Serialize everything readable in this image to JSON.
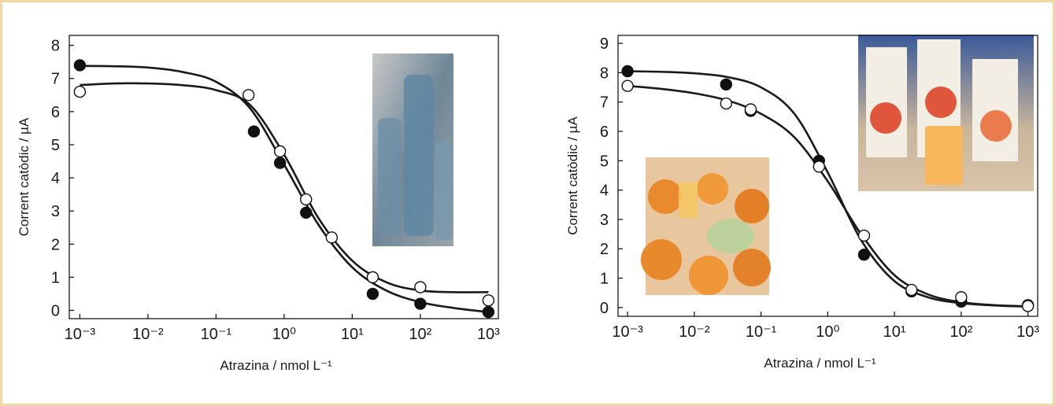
{
  "chart_data": [
    {
      "type": "scatter",
      "xscale": "log",
      "xlabel": "Atrazina / nmol L⁻¹",
      "ylabel": "Corrent catòdic / µA",
      "xlim": [
        0.0007,
        1400
      ],
      "ylim": [
        -0.25,
        8.3
      ],
      "xticks": [
        {
          "value": 0.001,
          "label": "10⁻³"
        },
        {
          "value": 0.01,
          "label": "10⁻²"
        },
        {
          "value": 0.1,
          "label": "10⁻¹"
        },
        {
          "value": 1,
          "label": "10⁰"
        },
        {
          "value": 10,
          "label": "10¹"
        },
        {
          "value": 100,
          "label": "10²"
        },
        {
          "value": 1000,
          "label": "10³"
        }
      ],
      "yticks": [
        0,
        1,
        2,
        3,
        4,
        5,
        6,
        7,
        8
      ],
      "series": [
        {
          "marker": "filled",
          "color": "#111111",
          "x": [
            0.001,
            0.36,
            0.87,
            2.1,
            20,
            100,
            1000
          ],
          "values": [
            7.4,
            5.4,
            4.45,
            2.95,
            0.5,
            0.2,
            -0.05
          ]
        },
        {
          "marker": "open",
          "color": "#111111",
          "x": [
            0.001,
            0.3,
            0.87,
            2.1,
            5,
            20,
            100,
            1000
          ],
          "values": [
            6.6,
            6.5,
            4.8,
            3.35,
            2.2,
            1.0,
            0.7,
            0.3
          ]
        }
      ],
      "curves": [
        {
          "color": "#1a1a1a",
          "x": [
            0.001,
            0.00316,
            0.01,
            0.0316,
            0.1,
            0.316,
            1,
            3.16,
            10,
            31.6,
            100,
            316,
            1000
          ],
          "values": [
            7.38,
            7.37,
            7.33,
            7.2,
            6.9,
            6.1,
            4.4,
            2.6,
            1.3,
            0.6,
            0.25,
            0.07,
            -0.05
          ]
        },
        {
          "color": "#1a1a1a",
          "x": [
            0.001,
            0.00316,
            0.01,
            0.0316,
            0.1,
            0.316,
            1,
            3.16,
            10,
            31.6,
            100,
            316,
            1000
          ],
          "values": [
            6.8,
            6.85,
            6.85,
            6.8,
            6.65,
            6.2,
            4.7,
            2.8,
            1.5,
            0.85,
            0.6,
            0.55,
            0.55
          ]
        }
      ]
    },
    {
      "type": "scatter",
      "xscale": "log",
      "xlabel": "Atrazina / nmol L⁻¹",
      "ylabel": "Corrent catòdic / µA",
      "xlim": [
        0.00072,
        1400
      ],
      "ylim": [
        -0.3,
        9.27
      ],
      "xticks": [
        {
          "value": 0.001,
          "label": "10⁻³"
        },
        {
          "value": 0.01,
          "label": "10⁻²"
        },
        {
          "value": 0.1,
          "label": "10⁻¹"
        },
        {
          "value": 1,
          "label": "10⁰"
        },
        {
          "value": 10,
          "label": "10¹"
        },
        {
          "value": 100,
          "label": "10²"
        },
        {
          "value": 1000,
          "label": "10³"
        }
      ],
      "yticks": [
        0,
        1,
        2,
        3,
        4,
        5,
        6,
        7,
        8,
        9
      ],
      "series": [
        {
          "marker": "filled",
          "color": "#111111",
          "x": [
            0.001,
            0.03,
            0.07,
            0.74,
            3.5,
            18,
            100,
            1000
          ],
          "values": [
            8.05,
            7.6,
            6.7,
            5.0,
            1.8,
            0.55,
            0.2,
            0.08
          ]
        },
        {
          "marker": "open",
          "color": "#111111",
          "x": [
            0.001,
            0.03,
            0.07,
            0.74,
            3.5,
            18,
            100,
            1000
          ],
          "values": [
            7.55,
            6.95,
            6.75,
            4.8,
            2.45,
            0.6,
            0.35,
            0.05
          ]
        }
      ],
      "curves": [
        {
          "color": "#1a1a1a",
          "x": [
            0.001,
            0.00316,
            0.01,
            0.0316,
            0.1,
            0.316,
            1,
            3.16,
            10,
            31.6,
            100,
            316,
            1000
          ],
          "values": [
            8.05,
            8.03,
            7.98,
            7.85,
            7.5,
            6.6,
            4.6,
            2.3,
            0.9,
            0.35,
            0.15,
            0.07,
            0.03
          ]
        },
        {
          "color": "#1a1a1a",
          "x": [
            0.001,
            0.00316,
            0.01,
            0.0316,
            0.1,
            0.316,
            1,
            3.16,
            10,
            31.6,
            100,
            316,
            1000
          ],
          "values": [
            7.55,
            7.45,
            7.3,
            7.05,
            6.6,
            5.8,
            4.3,
            2.5,
            1.1,
            0.45,
            0.18,
            0.08,
            0.04
          ]
        }
      ]
    }
  ]
}
